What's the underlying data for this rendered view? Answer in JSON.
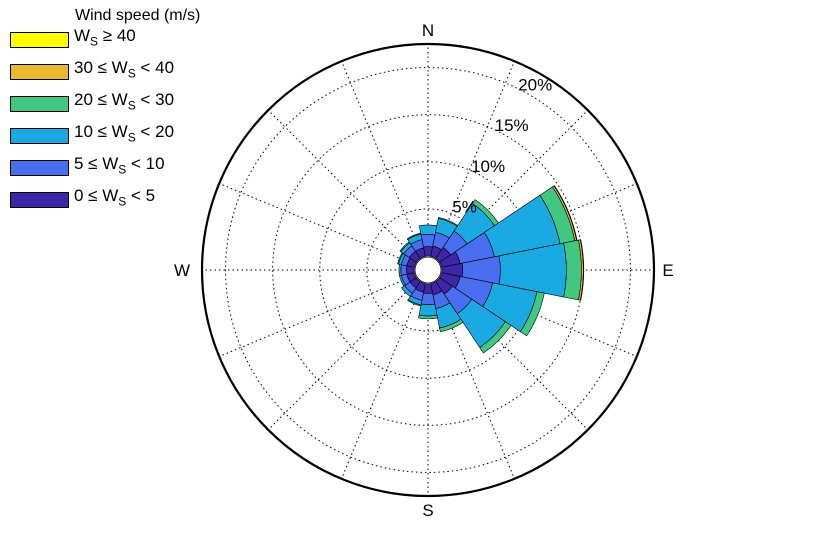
{
  "chart_data": {
    "type": "wind-rose",
    "legend_title": "Wind speed (m/s)",
    "legend_placement": "top-left",
    "directions": [
      "N",
      "NNE",
      "NE",
      "ENE",
      "E",
      "ESE",
      "SE",
      "SSE",
      "S",
      "SSW",
      "SW",
      "WSW",
      "W",
      "WNW",
      "NW",
      "NNW"
    ],
    "compass_labels": [
      "N",
      "E",
      "S",
      "W"
    ],
    "ring_labels": [
      "5%",
      "10%",
      "15%",
      "20%"
    ],
    "ring_values": [
      5,
      10,
      15,
      20
    ],
    "rlim": [
      0,
      22.5
    ],
    "grid": true,
    "series": [
      {
        "label": {
          "prefix": "0 ≤ W",
          "sub": "S",
          "suffix": " < 5"
        },
        "color": "#3e26a8",
        "values": [
          1.0,
          1.1,
          1.4,
          2.0,
          2.2,
          2.0,
          1.6,
          1.2,
          1.0,
          0.9,
          0.8,
          0.8,
          0.8,
          0.8,
          0.9,
          0.9
        ]
      },
      {
        "label": {
          "prefix": "5 ≤ W",
          "sub": "S",
          "suffix": " < 10"
        },
        "color": "#4a6ef0",
        "values": [
          1.3,
          1.5,
          2.1,
          3.7,
          4.0,
          3.5,
          2.5,
          1.5,
          1.2,
          0.9,
          0.7,
          0.6,
          0.6,
          0.6,
          0.7,
          0.9
        ]
      },
      {
        "label": {
          "prefix": "10 ≤ W",
          "sub": "S",
          "suffix": " < 20"
        },
        "color": "#1aa9e0",
        "values": [
          1.0,
          1.5,
          3.5,
          7.1,
          7.0,
          4.8,
          4.3,
          2.1,
          1.2,
          0.5,
          0.4,
          0.2,
          0.2,
          0.3,
          0.4,
          0.6
        ]
      },
      {
        "label": {
          "prefix": "20 ≤ W",
          "sub": "S",
          "suffix": " < 30"
        },
        "color": "#40c880",
        "values": [
          0.0,
          0.1,
          0.5,
          1.6,
          1.6,
          0.8,
          0.7,
          0.4,
          0.3,
          0.1,
          0.0,
          0.0,
          0.0,
          0.1,
          0.1,
          0.1
        ]
      },
      {
        "label": {
          "prefix": "30 ≤ W",
          "sub": "S",
          "suffix": " < 40"
        },
        "color": "#e9b830",
        "values": [
          0.0,
          0.0,
          0.0,
          0.2,
          0.2,
          0.0,
          0.0,
          0.0,
          0.0,
          0.0,
          0.0,
          0.0,
          0.0,
          0.0,
          0.0,
          0.0
        ]
      },
      {
        "label": {
          "prefix": "W",
          "sub": "S",
          "suffix": " ≥ 40"
        },
        "color": "#ffff00",
        "values": [
          0.0,
          0.0,
          0.0,
          0.05,
          0.05,
          0.0,
          0.0,
          0.0,
          0.0,
          0.0,
          0.0,
          0.0,
          0.0,
          0.0,
          0.0,
          0.0
        ]
      }
    ]
  }
}
